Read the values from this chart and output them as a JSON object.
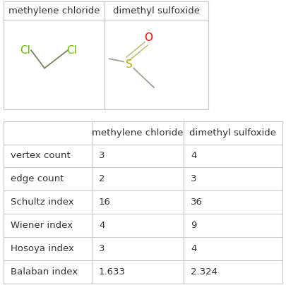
{
  "title_row": [
    "methylene chloride",
    "dimethyl sulfoxide"
  ],
  "row_labels": [
    "vertex count",
    "edge count",
    "Schultz index",
    "Wiener index",
    "Hosoya index",
    "Balaban index"
  ],
  "col1_values": [
    "3",
    "2",
    "16",
    "4",
    "3",
    "1.633"
  ],
  "col2_values": [
    "4",
    "3",
    "36",
    "9",
    "4",
    "2.324"
  ],
  "bg_color": "#ffffff",
  "grid_color": "#c8c8c8",
  "text_color": "#333333",
  "cl_color": "#6abf00",
  "o_color": "#ff0000",
  "s_color": "#b0b000",
  "bond_color_mol1": "#808060",
  "bond_color_mol2": "#c0c080",
  "bond_gray": "#a0a090",
  "font_size_header": 9.5,
  "font_size_table": 9.5,
  "font_size_mol_label": 11
}
